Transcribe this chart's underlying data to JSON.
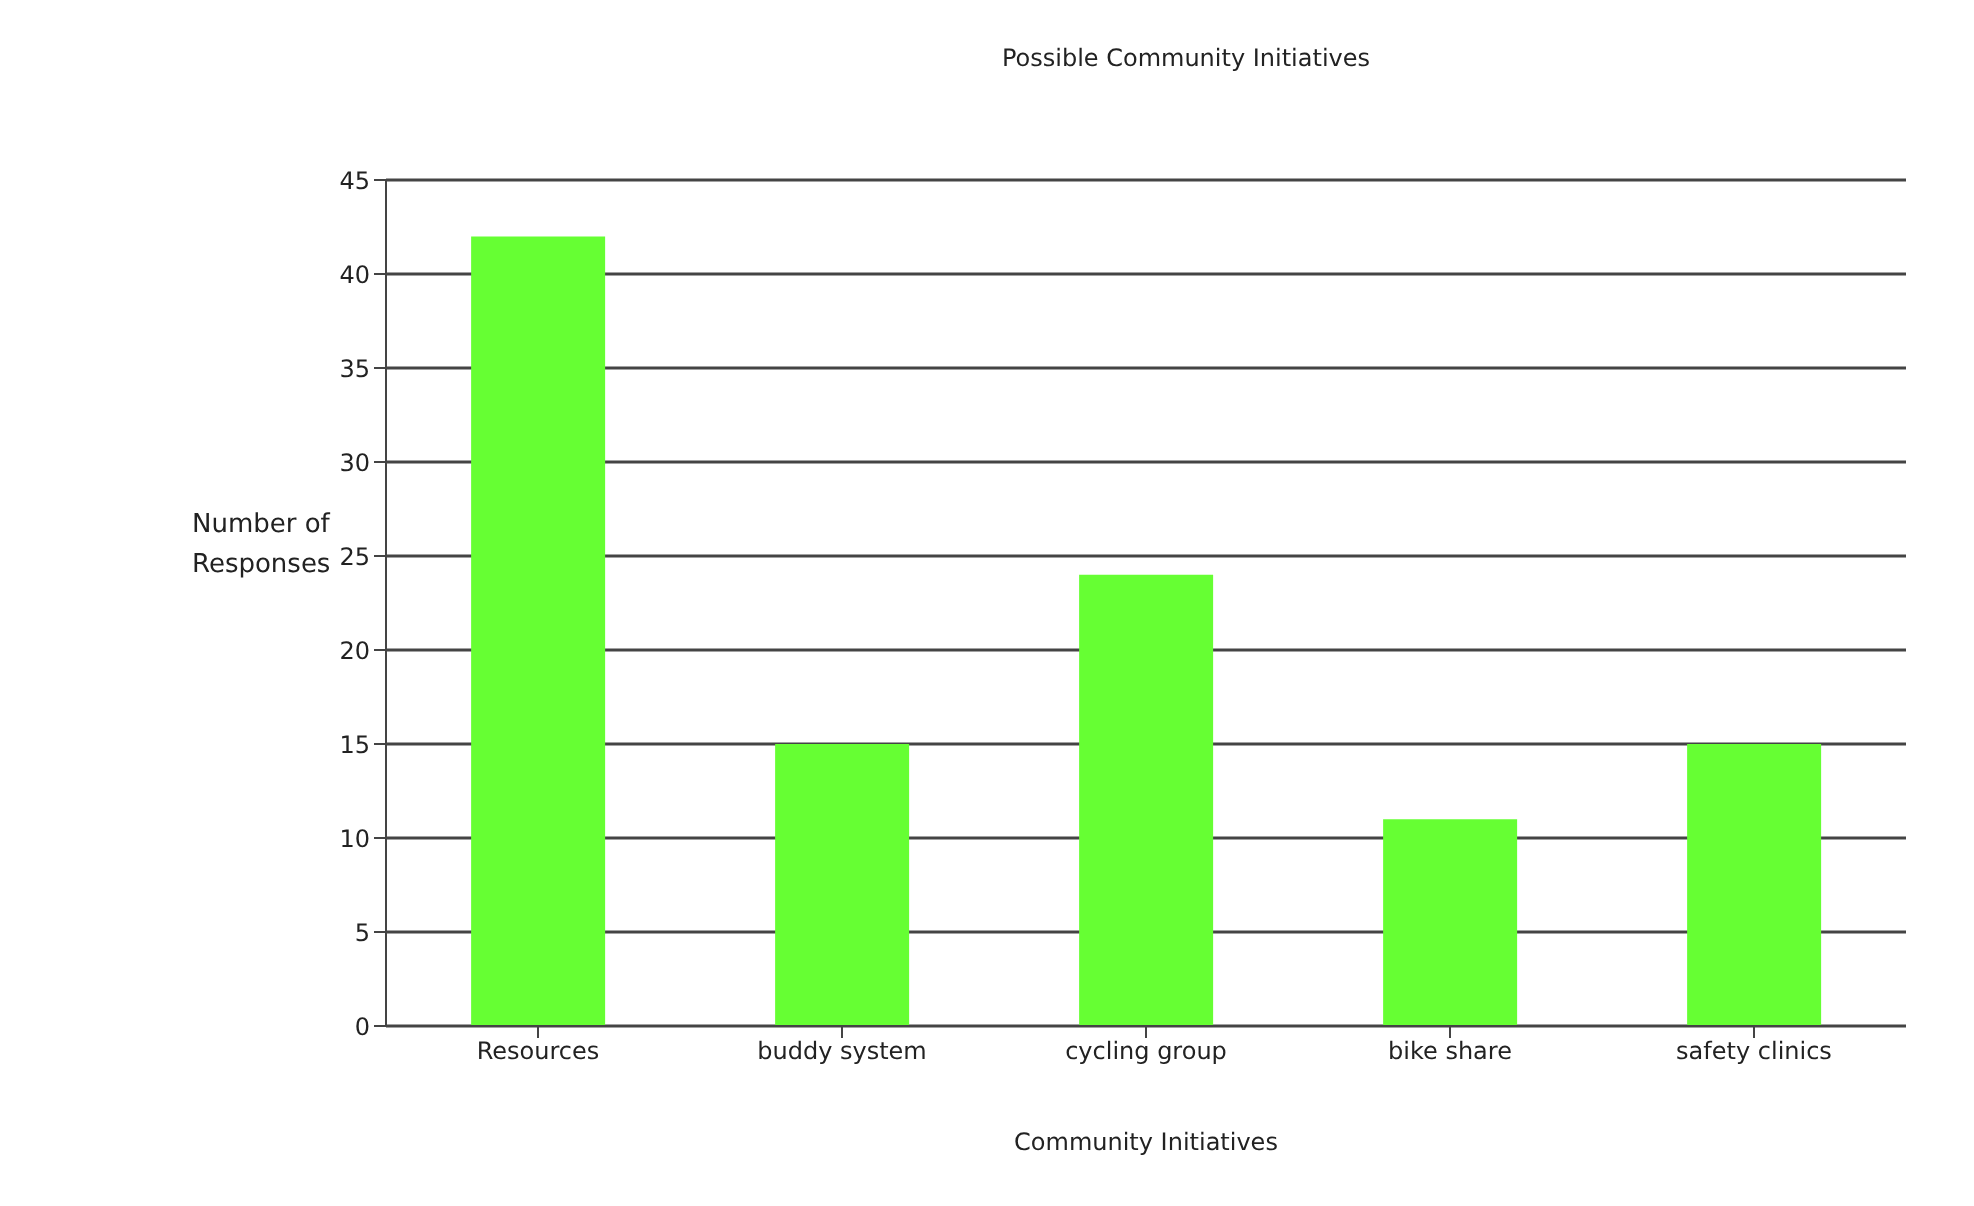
{
  "chart_data": {
    "type": "bar",
    "title": "Possible Community Initiatives",
    "xlabel": "Community Initiatives",
    "ylabel": "Number of Responses",
    "categories": [
      "Resources",
      "buddy system",
      "cycling group",
      "bike share",
      "safety clinics"
    ],
    "values": [
      42,
      15,
      24,
      11,
      15
    ],
    "color": "#66ff33",
    "ylim": [
      0,
      45
    ],
    "yticks": [
      0,
      5,
      10,
      15,
      20,
      25,
      30,
      35,
      40,
      45
    ],
    "grid": "y"
  }
}
